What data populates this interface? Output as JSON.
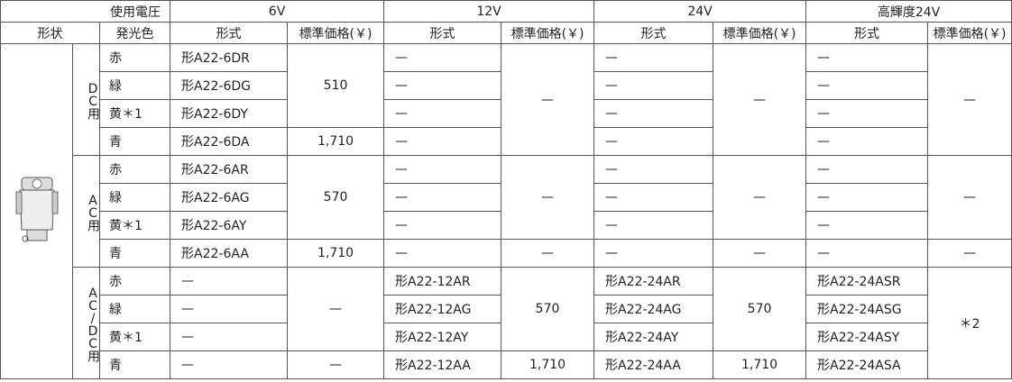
{
  "header": {
    "voltage_label": "使用電圧",
    "voltages": [
      "6V",
      "12V",
      "24V",
      "高輝度24V"
    ],
    "shape_label": "形状",
    "color_label": "発光色",
    "sub_headers": [
      [
        "形式",
        "標準価格(￥)"
      ],
      [
        "形式",
        "標準価格(￥)"
      ],
      [
        "形式",
        "標準価格(￥)"
      ],
      [
        "形式",
        "標準価格(￥)"
      ]
    ]
  },
  "groups": [
    {
      "label": "DC用",
      "colors": [
        "赤",
        "緑",
        "黄＊1",
        "青"
      ],
      "models": [
        [
          "形A22-6DR",
          "形A22-6DG",
          "形A22-6DY",
          "形A22-6DA"
        ],
        [
          "—",
          "—",
          "—",
          "—"
        ],
        [
          "—",
          "—",
          "—",
          "—"
        ],
        [
          "—",
          "—",
          "—",
          "—"
        ]
      ],
      "prices": [
        [
          "510",
          "1,710"
        ],
        [
          "—"
        ],
        [
          "—"
        ],
        [
          "—"
        ]
      ]
    },
    {
      "label": "AC用",
      "colors": [
        "赤",
        "緑",
        "黄＊1",
        "青"
      ],
      "models": [
        [
          "形A22-6AR",
          "形A22-6AG",
          "形A22-6AY",
          "形A22-6AA"
        ],
        [
          "—",
          "—",
          "—",
          "—"
        ],
        [
          "—",
          "—",
          "—",
          "—"
        ],
        [
          "—",
          "—",
          "—",
          "—"
        ]
      ],
      "prices": [
        [
          "570",
          "1,710"
        ],
        [
          "—",
          "—"
        ],
        [
          "—",
          "—"
        ],
        [
          "—",
          "—"
        ]
      ]
    },
    {
      "label": "AC/DC用",
      "colors": [
        "赤",
        "緑",
        "黄＊1",
        "青"
      ],
      "models": [
        [
          "—",
          "—",
          "—",
          "—"
        ],
        [
          "形A22-12AR",
          "形A22-12AG",
          "形A22-12AY",
          "形A22-12AA"
        ],
        [
          "形A22-24AR",
          "形A22-24AG",
          "形A22-24AY",
          "形A22-24AA"
        ],
        [
          "形A22-24ASR",
          "形A22-24ASG",
          "形A22-24ASY",
          "形A22-24ASA"
        ]
      ],
      "prices": [
        [
          "—",
          "—"
        ],
        [
          "570",
          "1,710"
        ],
        [
          "570",
          "1,710"
        ],
        [
          "＊2"
        ]
      ]
    }
  ]
}
